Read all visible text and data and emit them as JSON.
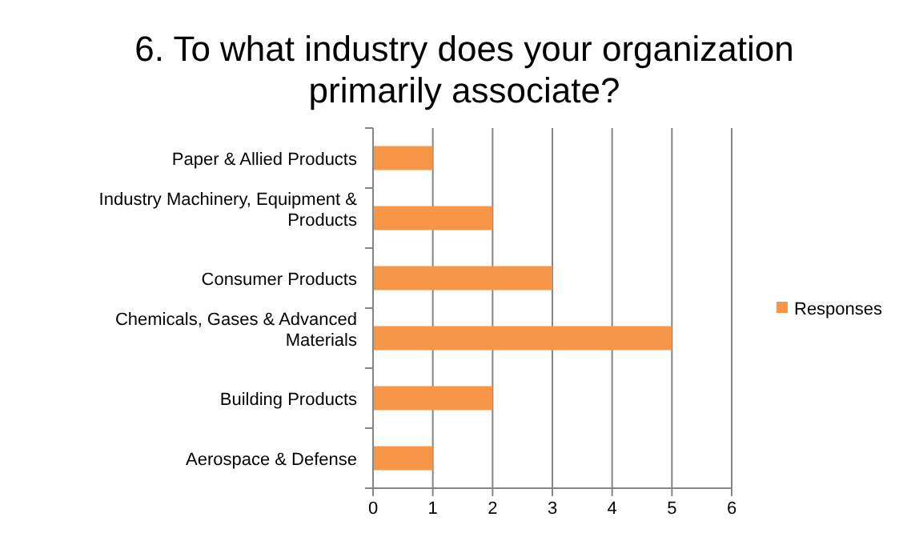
{
  "chart_data": {
    "type": "bar",
    "orientation": "horizontal",
    "title": "6. To what industry does your organization primarily associate?",
    "categories": [
      "Paper & Allied Products",
      "Industry Machinery, Equipment & Products",
      "Consumer Products",
      "Chemicals, Gases & Advanced Materials",
      "Building Products",
      "Aerospace & Defense"
    ],
    "series": [
      {
        "name": "Responses",
        "color": "#f79646",
        "values": [
          1,
          2,
          3,
          5,
          2,
          1
        ]
      }
    ],
    "xlim": [
      0,
      6
    ],
    "xticks": [
      0,
      1,
      2,
      3,
      4,
      5,
      6
    ],
    "grid": "x",
    "legend": "right"
  }
}
